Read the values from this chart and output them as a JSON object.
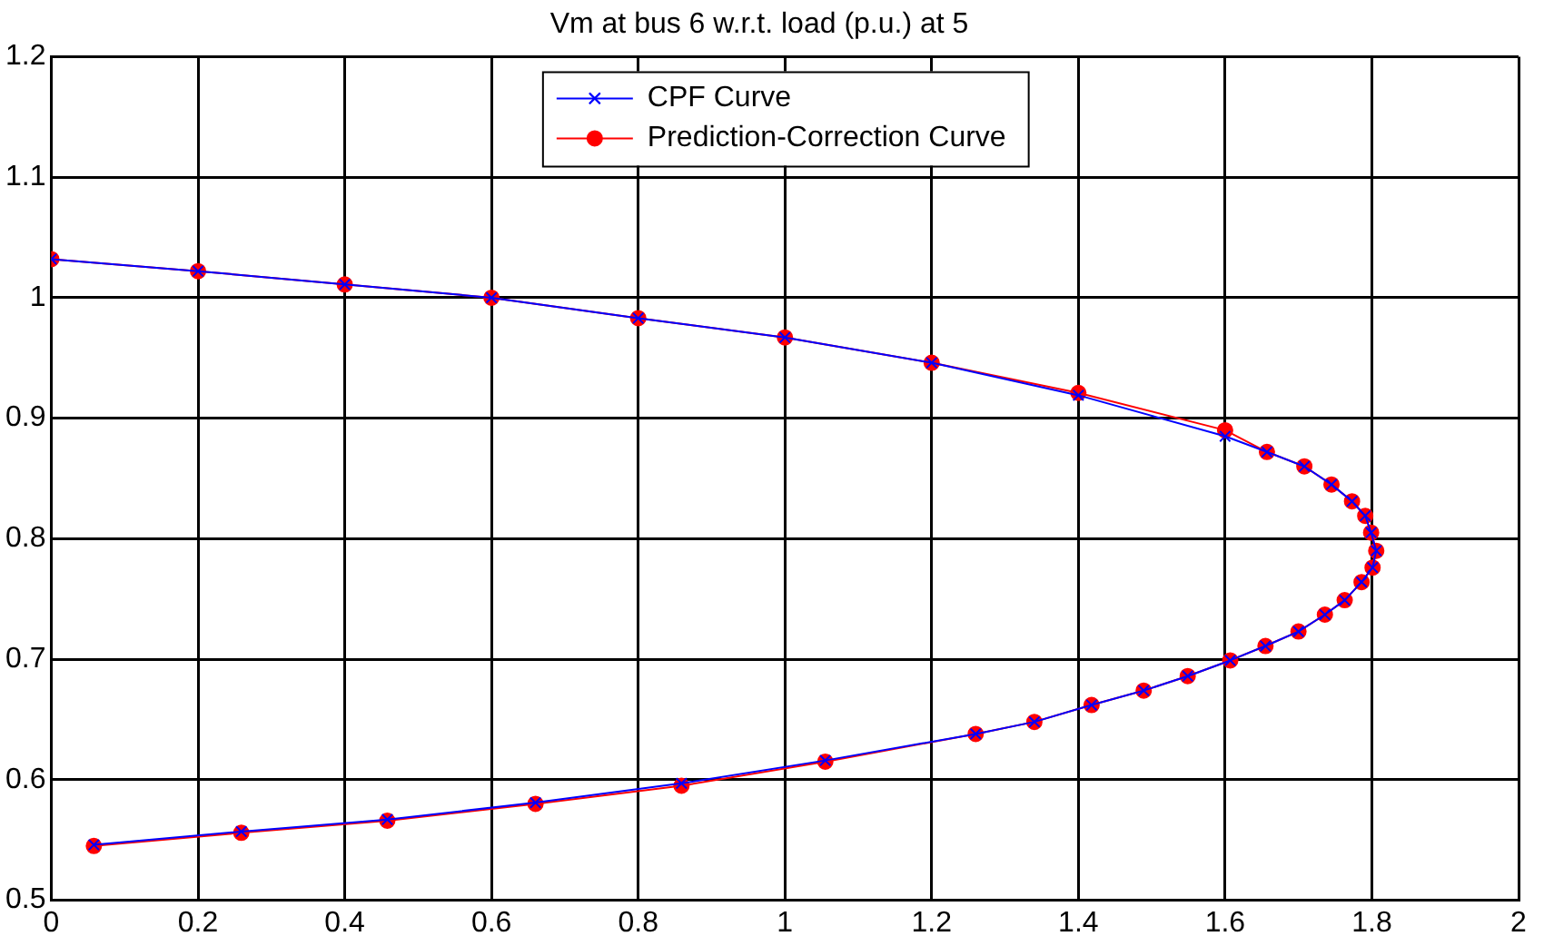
{
  "chart_data": {
    "type": "line",
    "title": "Vm at bus 6 w.r.t. load (p.u.) at 5",
    "xlim": [
      0,
      2
    ],
    "xticks": [
      0,
      0.2,
      0.4,
      0.6,
      0.8,
      1,
      1.2,
      1.4,
      1.6,
      1.8,
      2
    ],
    "ylim": [
      0.5,
      1.2
    ],
    "yticks": [
      0.5,
      0.6,
      0.7,
      0.8,
      0.9,
      1,
      1.1,
      1.2
    ],
    "grid": true,
    "legend": "top",
    "line_style": "solid",
    "series": [
      {
        "name": "CPF Curve",
        "color": "#0000ff",
        "marker": "cross",
        "x": [
          0,
          0.2,
          0.4,
          0.6,
          0.8,
          1,
          1.2,
          1.4,
          1.6,
          1.657,
          1.708,
          1.745,
          1.773,
          1.791,
          1.799,
          1.806,
          1.801,
          1.786,
          1.763,
          1.736,
          1.7,
          1.655,
          1.607,
          1.549,
          1.489,
          1.418,
          1.34,
          1.26,
          1.055,
          0.859,
          0.66,
          0.458,
          0.259,
          0.058
        ],
        "values": [
          1.032,
          1.022,
          1.011,
          1,
          0.983,
          0.967,
          0.946,
          0.919,
          0.885,
          0.872,
          0.86,
          0.845,
          0.831,
          0.819,
          0.805,
          0.79,
          0.776,
          0.764,
          0.749,
          0.737,
          0.723,
          0.711,
          0.699,
          0.686,
          0.674,
          0.662,
          0.648,
          0.638,
          0.616,
          0.597,
          0.581,
          0.567,
          0.557,
          0.546
        ]
      },
      {
        "name": "Prediction-Correction Curve",
        "color": "#ff0000",
        "marker": "circle",
        "x": [
          0,
          0.2,
          0.4,
          0.6,
          0.8,
          1,
          1.2,
          1.4,
          1.6,
          1.657,
          1.708,
          1.745,
          1.773,
          1.791,
          1.799,
          1.806,
          1.801,
          1.786,
          1.763,
          1.736,
          1.7,
          1.655,
          1.607,
          1.549,
          1.489,
          1.418,
          1.34,
          1.26,
          1.055,
          0.859,
          0.66,
          0.458,
          0.259,
          0.058
        ],
        "values": [
          1.032,
          1.022,
          1.011,
          1,
          0.983,
          0.967,
          0.946,
          0.921,
          0.89,
          0.872,
          0.86,
          0.845,
          0.831,
          0.819,
          0.805,
          0.79,
          0.776,
          0.764,
          0.749,
          0.737,
          0.723,
          0.711,
          0.699,
          0.686,
          0.674,
          0.662,
          0.648,
          0.638,
          0.615,
          0.595,
          0.58,
          0.566,
          0.556,
          0.545
        ]
      }
    ]
  }
}
